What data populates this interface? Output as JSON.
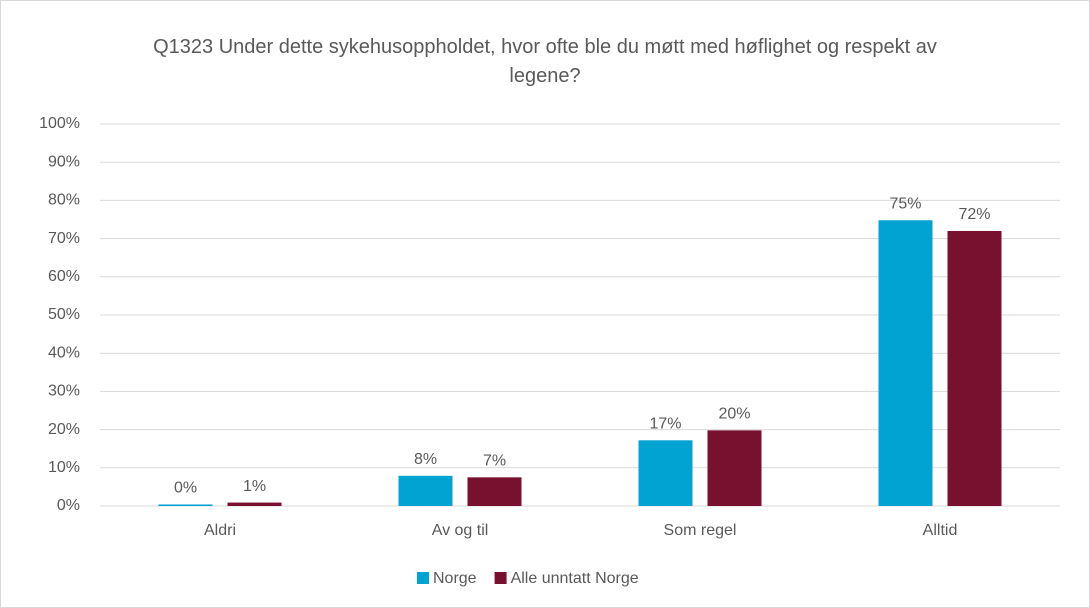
{
  "chart_data": {
    "type": "bar",
    "title": "Q1323 Under dette sykehusoppholdet, hvor ofte ble du møtt med høflighet og respekt av legene?",
    "categories": [
      "Aldri",
      "Av og til",
      "Som regel",
      "Alltid"
    ],
    "series": [
      {
        "name": "Norge",
        "color": "#00a3d2",
        "values": [
          0.4,
          7.9,
          17.2,
          74.8
        ],
        "value_labels": [
          "0%",
          "8%",
          "17%",
          "75%"
        ]
      },
      {
        "name": "Alle unntatt Norge",
        "color": "#78102f",
        "values": [
          0.9,
          7.5,
          19.8,
          72.0
        ],
        "value_labels": [
          "1%",
          "7%",
          "20%",
          "72%"
        ]
      }
    ],
    "ylim": [
      0,
      100
    ],
    "yticks": [
      {
        "value": 0,
        "label": "0%"
      },
      {
        "value": 10,
        "label": "10%"
      },
      {
        "value": 20,
        "label": "20%"
      },
      {
        "value": 30,
        "label": "30%"
      },
      {
        "value": 40,
        "label": "40%"
      },
      {
        "value": 50,
        "label": "50%"
      },
      {
        "value": 60,
        "label": "60%"
      },
      {
        "value": 70,
        "label": "70%"
      },
      {
        "value": 80,
        "label": "80%"
      },
      {
        "value": 90,
        "label": "90%"
      },
      {
        "value": 100,
        "label": "100%"
      }
    ],
    "grid": true,
    "legend": "bottom"
  }
}
